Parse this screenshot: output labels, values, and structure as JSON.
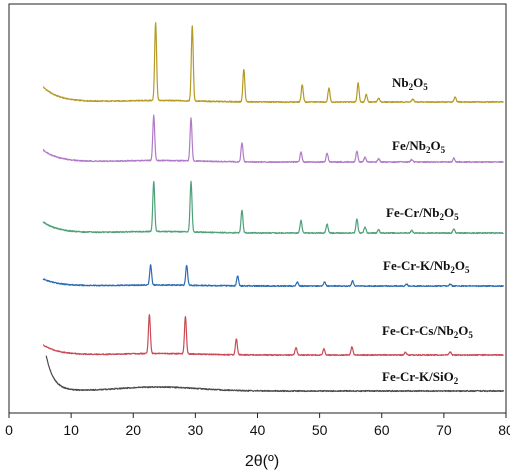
{
  "chart_data": {
    "type": "line",
    "title": "",
    "xlabel": "2θ(º)",
    "ylabel": "",
    "xlim": [
      0,
      80
    ],
    "xticks": [
      0,
      10,
      20,
      30,
      40,
      50,
      60,
      70,
      80
    ],
    "y_tick_labels": false,
    "grid": false,
    "legend": "none (series labelled on plot)",
    "series": [
      {
        "name": "Nb2O5",
        "label_main": "Nb",
        "label_sub1": "2",
        "label_mid": "O",
        "label_sub2": "5",
        "color": "#b59a23",
        "x_start": 5.5,
        "baseline": 15,
        "head_amp": 30,
        "head_decay": 2.5,
        "hump_amp": 3,
        "peaks": [
          [
            23.6,
            155
          ],
          [
            29.5,
            150
          ],
          [
            37.8,
            65
          ],
          [
            47.2,
            35
          ],
          [
            51.5,
            28
          ],
          [
            56.2,
            38
          ],
          [
            57.5,
            15
          ],
          [
            59.5,
            8
          ],
          [
            65.0,
            6
          ],
          [
            71.8,
            10
          ]
        ]
      },
      {
        "name": "Fe/Nb2O5",
        "label_main": "Fe/Nb",
        "label_sub1": "2",
        "label_mid": "O",
        "label_sub2": "5",
        "color": "#b07ac9",
        "x_start": 5.5,
        "baseline": 13,
        "head_amp": 24,
        "head_decay": 2.5,
        "hump_amp": 3,
        "peaks": [
          [
            23.3,
            90
          ],
          [
            29.3,
            85
          ],
          [
            37.5,
            38
          ],
          [
            47.0,
            20
          ],
          [
            51.2,
            18
          ],
          [
            56.0,
            22
          ],
          [
            57.3,
            10
          ],
          [
            59.5,
            7
          ],
          [
            64.8,
            5
          ],
          [
            71.6,
            8
          ]
        ]
      },
      {
        "name": "Fe-Cr/Nb2O5",
        "label_main": "Fe-Cr/Nb",
        "label_sub1": "2",
        "label_mid": "O",
        "label_sub2": "5",
        "color": "#4fa07a",
        "x_start": 5.5,
        "baseline": 15,
        "head_amp": 22,
        "head_decay": 2.5,
        "hump_amp": 3,
        "peaks": [
          [
            23.3,
            100
          ],
          [
            29.3,
            100
          ],
          [
            37.5,
            45
          ],
          [
            47.0,
            25
          ],
          [
            51.2,
            18
          ],
          [
            56.0,
            28
          ],
          [
            57.3,
            12
          ],
          [
            59.5,
            7
          ],
          [
            64.8,
            5
          ],
          [
            71.6,
            8
          ]
        ]
      },
      {
        "name": "Fe-Cr-K/Nb2O5",
        "label_main": "Fe-Cr-K/Nb",
        "label_sub1": "2",
        "label_mid": "O",
        "label_sub2": "5",
        "color": "#2d6bb3",
        "x_start": 5.5,
        "baseline": 12,
        "head_amp": 14,
        "head_decay": 2.5,
        "hump_amp": 2,
        "peaks": [
          [
            22.8,
            40
          ],
          [
            28.6,
            40
          ],
          [
            36.8,
            20
          ],
          [
            46.4,
            8
          ],
          [
            50.8,
            8
          ],
          [
            55.3,
            10
          ],
          [
            64.0,
            4
          ],
          [
            71.0,
            4
          ]
        ]
      },
      {
        "name": "Fe-Cr-Cs/Nb2O5",
        "label_main": "Fe-Cr-Cs/Nb",
        "label_sub1": "2",
        "label_mid": "O",
        "label_sub2": "5",
        "color": "#c94a55",
        "x_start": 5.5,
        "baseline": 14,
        "head_amp": 20,
        "head_decay": 2.5,
        "hump_amp": 3,
        "peaks": [
          [
            22.6,
            78
          ],
          [
            28.4,
            75
          ],
          [
            36.6,
            32
          ],
          [
            46.2,
            15
          ],
          [
            50.7,
            12
          ],
          [
            55.2,
            16
          ],
          [
            63.8,
            6
          ],
          [
            71.0,
            6
          ]
        ]
      },
      {
        "name": "Fe-Cr-K/SiO2",
        "label_main": "Fe-Cr-K/SiO",
        "label_sub1": "",
        "label_mid": "",
        "label_sub2": "2",
        "color": "#4a4a4a",
        "x_start": 6.0,
        "baseline": 10,
        "head_amp": 70,
        "head_decay": 1.2,
        "hump_amp": 8,
        "peaks": []
      }
    ]
  }
}
